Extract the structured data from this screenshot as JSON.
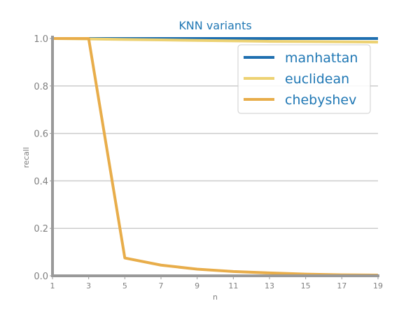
{
  "chart_data": {
    "type": "line",
    "title": "KNN variants",
    "xlabel": "n",
    "ylabel": "recall",
    "x": [
      1,
      3,
      5,
      7,
      9,
      11,
      13,
      15,
      17,
      19
    ],
    "xticks": [
      "1",
      "3",
      "5",
      "7",
      "9",
      "11",
      "13",
      "15",
      "17",
      "19"
    ],
    "yticks": [
      "0.0",
      "0.2",
      "0.4",
      "0.6",
      "0.8",
      "1.0"
    ],
    "xlim": [
      1,
      19
    ],
    "ylim": [
      0,
      1
    ],
    "grid": "horizontal",
    "legend_position": "top-right",
    "series": [
      {
        "name": "manhattan",
        "color": "#1f6fb0",
        "values": [
          1.0,
          1.0,
          1.0,
          1.0,
          1.0,
          1.0,
          1.0,
          1.0,
          1.0,
          1.0
        ]
      },
      {
        "name": "euclidean",
        "color": "#edd273",
        "values": [
          1.0,
          0.998,
          0.996,
          0.994,
          0.992,
          0.99,
          0.988,
          0.987,
          0.986,
          0.985
        ]
      },
      {
        "name": "chebyshev",
        "color": "#e8ad4a",
        "values": [
          1.0,
          1.0,
          0.075,
          0.045,
          0.028,
          0.018,
          0.012,
          0.007,
          0.004,
          0.003
        ]
      }
    ]
  }
}
